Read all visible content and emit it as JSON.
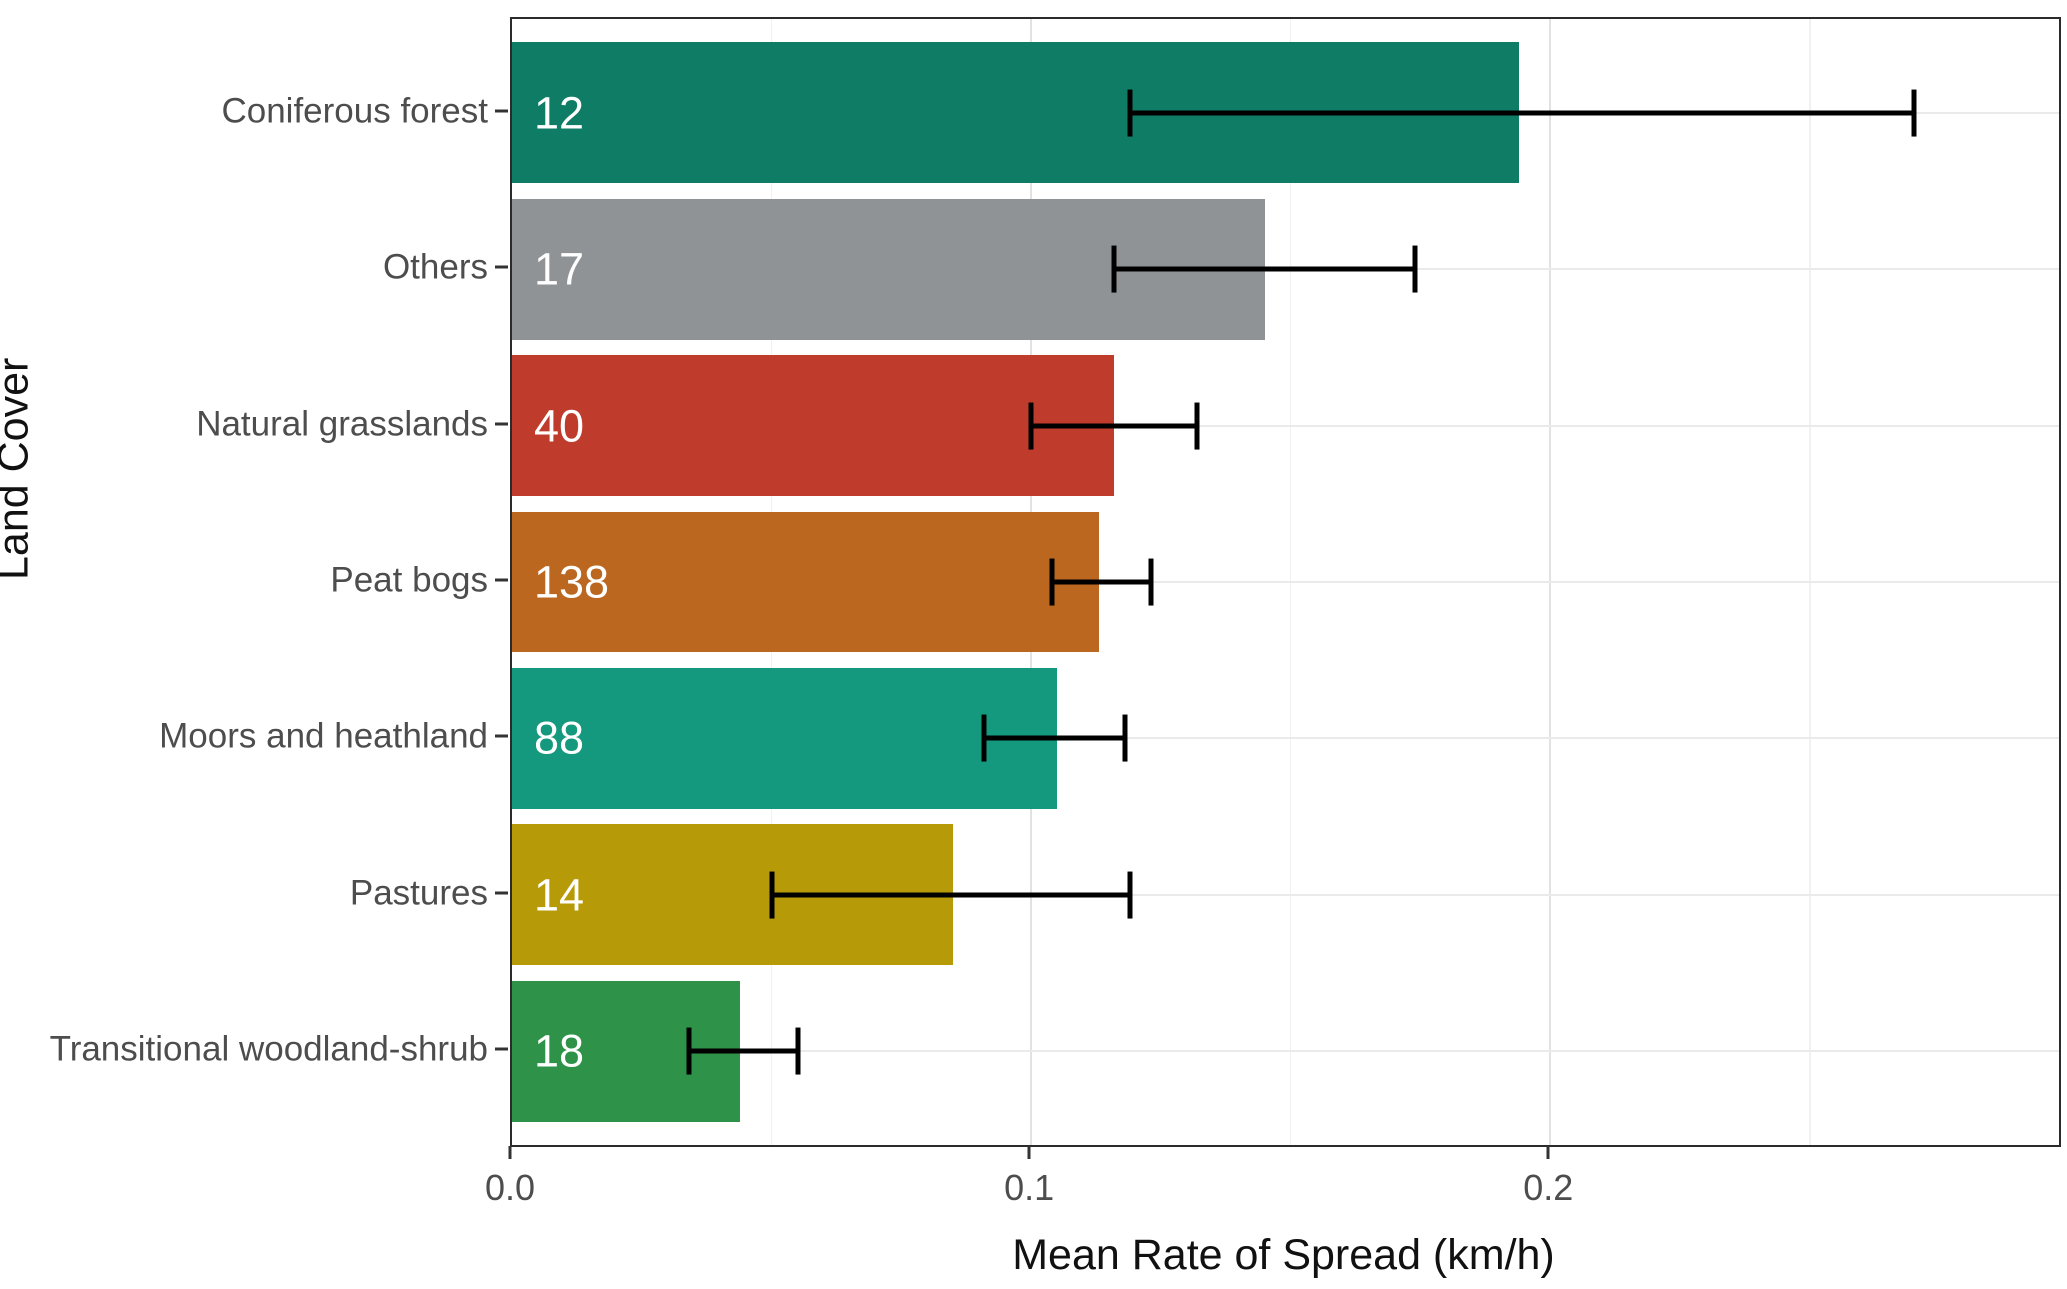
{
  "chart_data": {
    "type": "bar",
    "orientation": "horizontal",
    "xlabel": "Mean Rate of Spread (km/h)",
    "ylabel": "Land Cover",
    "xlim": [
      0,
      0.298
    ],
    "x_major_ticks": [
      0.1,
      0.2
    ],
    "x_tick_values": [
      0.0,
      0.1,
      0.2
    ],
    "x_tick_labels": [
      "0.0",
      "0.1",
      "0.2"
    ],
    "x_minor_gridlines": [
      0.05,
      0.15,
      0.25
    ],
    "grid": true,
    "error_bar_color": "#000000",
    "panel_border_color": "#2b2b2b",
    "rows": [
      {
        "category": "Coniferous forest",
        "count": "12",
        "mean": 0.194,
        "ci_lower": 0.119,
        "ci_upper": 0.27,
        "color": "#0f7d66"
      },
      {
        "category": "Others",
        "count": "17",
        "mean": 0.145,
        "ci_lower": 0.116,
        "ci_upper": 0.174,
        "color": "#909396"
      },
      {
        "category": "Natural grasslands",
        "count": "40",
        "mean": 0.116,
        "ci_lower": 0.1,
        "ci_upper": 0.132,
        "color": "#bf3b2b"
      },
      {
        "category": "Peat bogs",
        "count": "138",
        "mean": 0.113,
        "ci_lower": 0.104,
        "ci_upper": 0.123,
        "color": "#bc671f"
      },
      {
        "category": "Moors and heathland",
        "count": "88",
        "mean": 0.105,
        "ci_lower": 0.091,
        "ci_upper": 0.118,
        "color": "#14997e"
      },
      {
        "category": "Pastures",
        "count": "14",
        "mean": 0.085,
        "ci_lower": 0.05,
        "ci_upper": 0.119,
        "color": "#b79a08"
      },
      {
        "category": "Transitional woodland-shrub",
        "count": "18",
        "mean": 0.044,
        "ci_lower": 0.034,
        "ci_upper": 0.055,
        "color": "#2e9348"
      }
    ]
  }
}
